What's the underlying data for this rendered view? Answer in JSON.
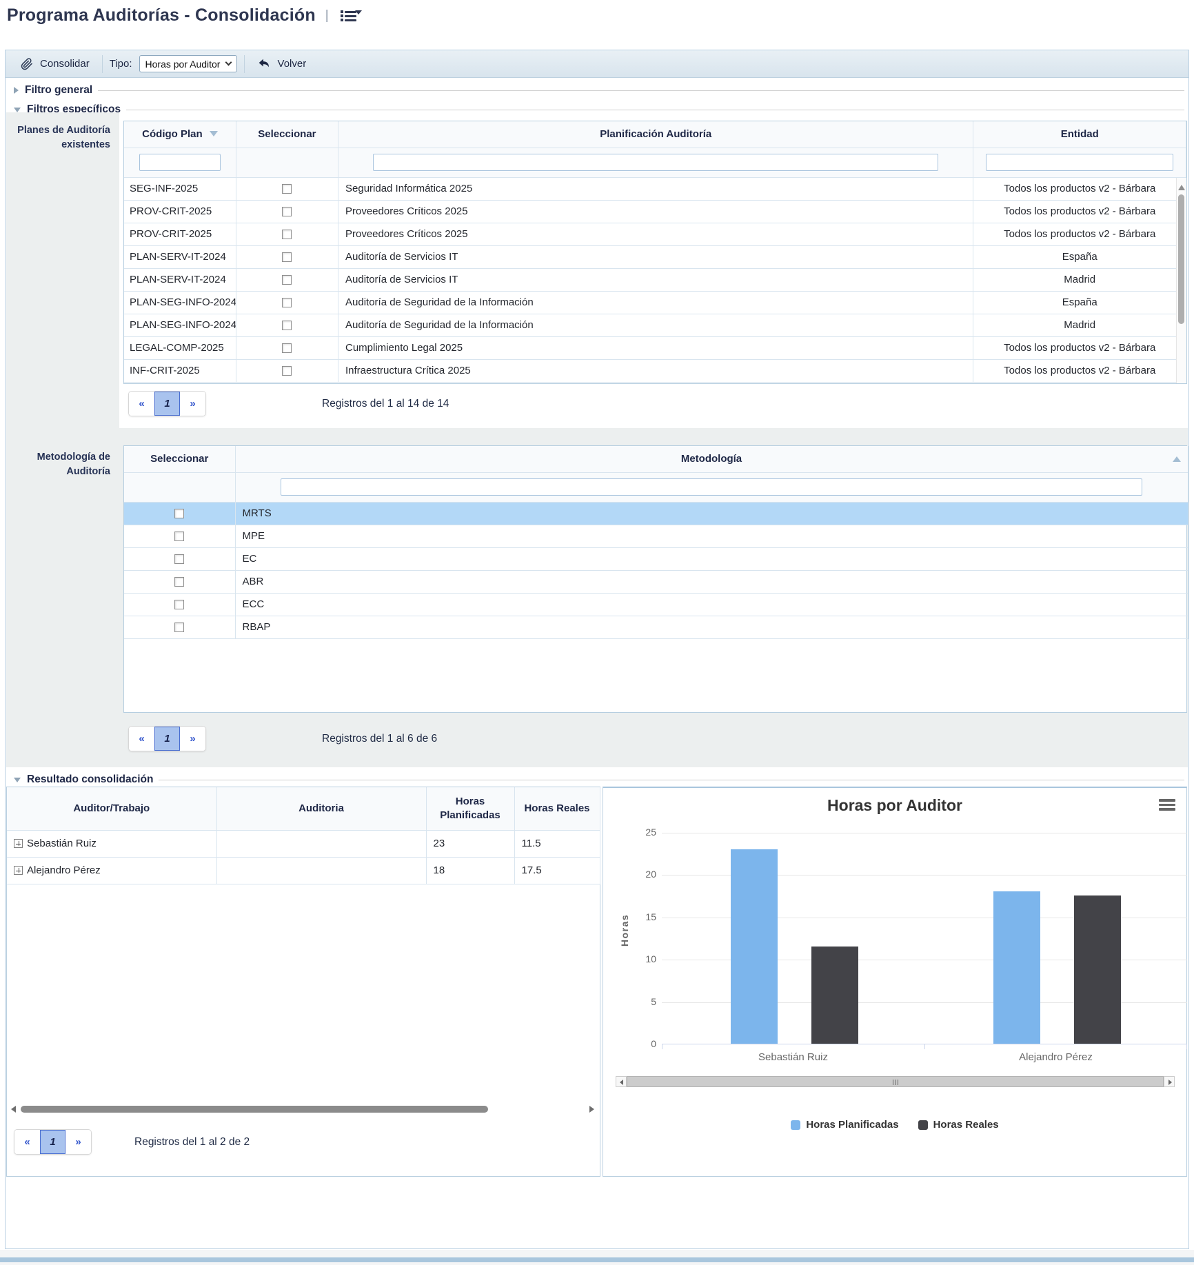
{
  "header": {
    "title": "Programa Auditorías - Consolidación",
    "separator": "|"
  },
  "toolbar": {
    "consolidar_label": "Consolidar",
    "tipo_label": "Tipo:",
    "tipo_value": "Horas por Auditor",
    "volver_label": "Volver"
  },
  "sections": {
    "filtro_general": "Filtro general",
    "filtros_especificos": "Filtros específicos",
    "resultado": "Resultado consolidación"
  },
  "planes": {
    "panel_label_line1": "Planes de Auditoría",
    "panel_label_line2": "existentes",
    "columns": {
      "codigo": "Código Plan",
      "seleccionar": "Seleccionar",
      "planificacion": "Planificación Auditoría",
      "entidad": "Entidad"
    },
    "rows": [
      {
        "codigo": "SEG-INF-2025",
        "planificacion": "Seguridad Informática 2025",
        "entidad": "Todos los productos v2 - Bárbara"
      },
      {
        "codigo": "PROV-CRIT-2025",
        "planificacion": "Proveedores Críticos 2025",
        "entidad": "Todos los productos v2 - Bárbara"
      },
      {
        "codigo": "PROV-CRIT-2025",
        "planificacion": "Proveedores Críticos 2025",
        "entidad": "Todos los productos v2 - Bárbara"
      },
      {
        "codigo": "PLAN-SERV-IT-2024",
        "planificacion": "Auditoría de Servicios IT",
        "entidad": "España"
      },
      {
        "codigo": "PLAN-SERV-IT-2024",
        "planificacion": "Auditoría de Servicios IT",
        "entidad": "Madrid"
      },
      {
        "codigo": "PLAN-SEG-INFO-2024",
        "planificacion": "Auditoría de Seguridad de la Información",
        "entidad": "España"
      },
      {
        "codigo": "PLAN-SEG-INFO-2024",
        "planificacion": "Auditoría de Seguridad de la Información",
        "entidad": "Madrid"
      },
      {
        "codigo": "LEGAL-COMP-2025",
        "planificacion": "Cumplimiento Legal 2025",
        "entidad": "Todos los productos v2 - Bárbara"
      },
      {
        "codigo": "INF-CRIT-2025",
        "planificacion": "Infraestructura Crítica 2025",
        "entidad": "Todos los productos v2 - Bárbara"
      }
    ],
    "pagination": {
      "prev": "«",
      "page": "1",
      "next": "»",
      "summary": "Registros del 1 al 14 de 14"
    }
  },
  "metodologia": {
    "panel_label_line1": "Metodología de",
    "panel_label_line2": "Auditoría",
    "columns": {
      "seleccionar": "Seleccionar",
      "metodologia": "Metodología"
    },
    "rows": [
      "MRTS",
      "MPE",
      "EC",
      "ABR",
      "ECC",
      "RBAP"
    ],
    "selected_row": "MRTS",
    "pagination": {
      "prev": "«",
      "page": "1",
      "next": "»",
      "summary": "Registros del 1 al 6 de 6"
    }
  },
  "resultado": {
    "columns": {
      "auditor": "Auditor/Trabajo",
      "auditoria": "Auditoria",
      "planificadas": "Horas Planificadas",
      "reales": "Horas Reales"
    },
    "rows": [
      {
        "auditor": "Sebastián Ruiz",
        "auditoria": "",
        "planificadas": "23",
        "reales": "11.5"
      },
      {
        "auditor": "Alejandro Pérez",
        "auditoria": "",
        "planificadas": "18",
        "reales": "17.5"
      }
    ],
    "pagination": {
      "prev": "«",
      "page": "1",
      "next": "»",
      "summary": "Registros del 1 al 2 de 2"
    }
  },
  "chart_data": {
    "type": "bar",
    "title": "Horas por Auditor",
    "categories": [
      "Sebastián Ruiz",
      "Alejandro Pérez"
    ],
    "series": [
      {
        "name": "Horas Planificadas",
        "color": "#7cb5ec",
        "values": [
          23,
          18
        ]
      },
      {
        "name": "Horas Reales",
        "color": "#434348",
        "values": [
          11.5,
          17.5
        ]
      }
    ],
    "xlabel": "",
    "ylabel": "Horas",
    "ylim": [
      0,
      25
    ],
    "yticks": [
      0,
      5,
      10,
      15,
      20,
      25
    ],
    "grid": true,
    "legend_position": "bottom"
  },
  "colors": {
    "series_blue": "#7cb5ec",
    "series_dark": "#434348",
    "row_highlight": "#b3d8f7",
    "pagination_active_bg": "#a9c3ee",
    "pagination_link": "#3355cc",
    "toolbar_bg": "#dde8f0",
    "container_border": "#b9d0e2"
  }
}
